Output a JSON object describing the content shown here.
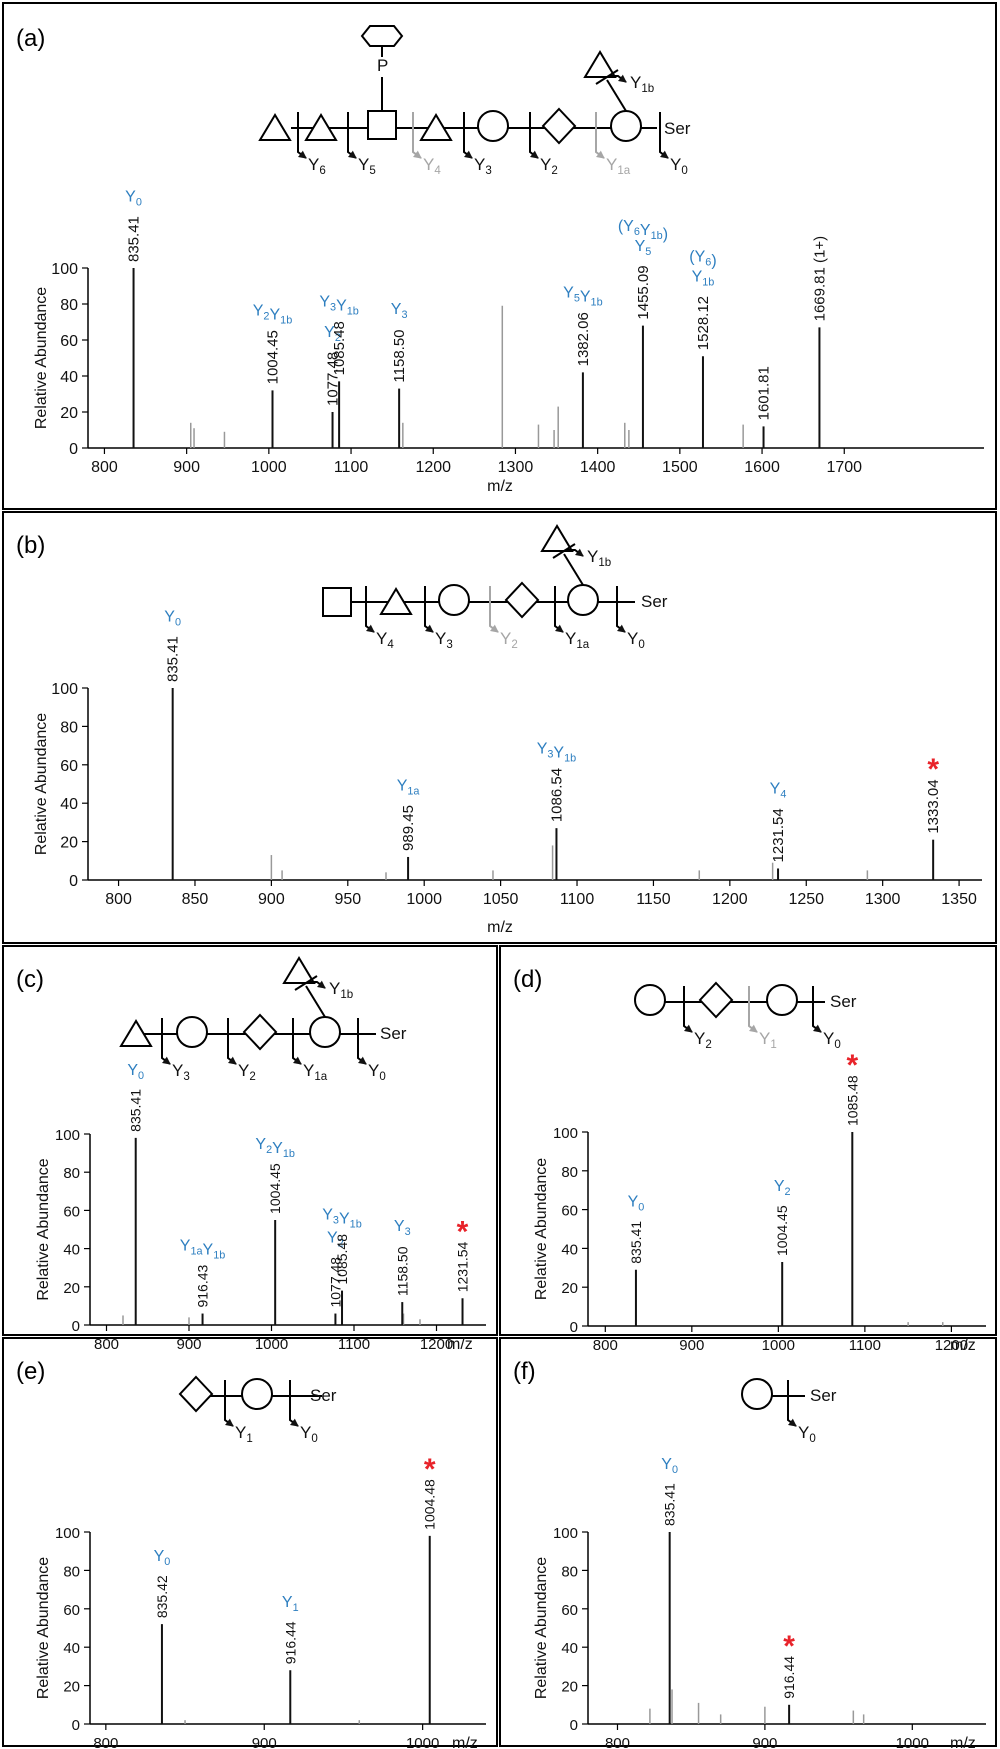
{
  "colors": {
    "annotation": "#2e7fc0",
    "star": "#e8232a",
    "peak": "#111111",
    "minor_peak": "#999999",
    "faded": "#a6a6a6"
  },
  "panel_labels": [
    "(a)",
    "(b)",
    "(c)",
    "(d)",
    "(e)",
    "(f)"
  ],
  "xlabel": "m/z",
  "ylabel": "Relative Abundance",
  "glycan": {
    "ser_label": "Ser",
    "phosphate_label": "P",
    "cleavages": {
      "a": [
        "Y6",
        "Y5",
        "Y4",
        "Y3",
        "Y2",
        "Y1a",
        "Y0",
        "Y1b"
      ],
      "b": [
        "Y4",
        "Y3",
        "Y2",
        "Y1a",
        "Y0",
        "Y1b"
      ],
      "c": [
        "Y3",
        "Y2",
        "Y1a",
        "Y0",
        "Y1b"
      ],
      "d": [
        "Y2",
        "Y1",
        "Y0"
      ],
      "e": [
        "Y1",
        "Y0"
      ],
      "f": [
        "Y0"
      ]
    }
  },
  "chart_data": [
    {
      "panel": "(a)",
      "type": "bar",
      "xlim": [
        780,
        1870
      ],
      "ylim": [
        0,
        100
      ],
      "xticks": [
        800,
        900,
        1000,
        1100,
        1200,
        1300,
        1400,
        1500,
        1600,
        1700
      ],
      "yticks": [
        0,
        20,
        40,
        60,
        80,
        100
      ],
      "labeled_peaks": [
        {
          "mz": 835.41,
          "y": 100,
          "label": "835.41",
          "ion": "Y0"
        },
        {
          "mz": 1004.45,
          "y": 32,
          "label": "1004.45",
          "ion": "Y2Y1b"
        },
        {
          "mz": 1077.48,
          "y": 20,
          "label": "1077.48",
          "ion": "Y2"
        },
        {
          "mz": 1085.48,
          "y": 37,
          "label": "1085.48",
          "ion": "Y3Y1b"
        },
        {
          "mz": 1158.5,
          "y": 33,
          "label": "1158.50",
          "ion": "Y3"
        },
        {
          "mz": 1382.06,
          "y": 42,
          "label": "1382.06",
          "ion": "Y5Y1b"
        },
        {
          "mz": 1455.09,
          "y": 68,
          "label": "1455.09",
          "ion": "(Y6Y1b) Y5"
        },
        {
          "mz": 1528.12,
          "y": 51,
          "label": "1528.12",
          "ion": "(Y6) Y1b"
        },
        {
          "mz": 1601.81,
          "y": 12,
          "label": "1601.81",
          "ion": ""
        },
        {
          "mz": 1669.81,
          "y": 67,
          "label": "1669.81 (1+)",
          "ion": ""
        }
      ],
      "minor_peaks": [
        {
          "mz": 905,
          "y": 14
        },
        {
          "mz": 909,
          "y": 11
        },
        {
          "mz": 946,
          "y": 9
        },
        {
          "mz": 1163,
          "y": 14
        },
        {
          "mz": 1284,
          "y": 79
        },
        {
          "mz": 1328,
          "y": 13
        },
        {
          "mz": 1347,
          "y": 10
        },
        {
          "mz": 1352,
          "y": 23
        },
        {
          "mz": 1433,
          "y": 14
        },
        {
          "mz": 1438,
          "y": 10
        },
        {
          "mz": 1577,
          "y": 13
        }
      ]
    },
    {
      "panel": "(b)",
      "type": "bar",
      "xlim": [
        780,
        1365
      ],
      "ylim": [
        0,
        100
      ],
      "xticks": [
        800,
        850,
        900,
        950,
        1000,
        1050,
        1100,
        1150,
        1200,
        1250,
        1300,
        1350
      ],
      "yticks": [
        0,
        20,
        40,
        60,
        80,
        100
      ],
      "labeled_peaks": [
        {
          "mz": 835.41,
          "y": 100,
          "label": "835.41",
          "ion": "Y0"
        },
        {
          "mz": 989.45,
          "y": 12,
          "label": "989.45",
          "ion": "Y1a"
        },
        {
          "mz": 1086.54,
          "y": 27,
          "label": "1086.54",
          "ion": "Y3Y1b"
        },
        {
          "mz": 1231.54,
          "y": 6,
          "label": "1231.54",
          "ion": "Y4"
        },
        {
          "mz": 1333.04,
          "y": 21,
          "label": "1333.04",
          "ion": "",
          "precursor": true
        }
      ],
      "minor_peaks": [
        {
          "mz": 900,
          "y": 13
        },
        {
          "mz": 907,
          "y": 5
        },
        {
          "mz": 975,
          "y": 4
        },
        {
          "mz": 1045,
          "y": 5
        },
        {
          "mz": 1084,
          "y": 18
        },
        {
          "mz": 1180,
          "y": 5
        },
        {
          "mz": 1228,
          "y": 9
        },
        {
          "mz": 1290,
          "y": 5
        }
      ]
    },
    {
      "panel": "(c)",
      "type": "bar",
      "xlim": [
        780,
        1260
      ],
      "ylim": [
        0,
        100
      ],
      "xticks": [
        800,
        900,
        1000,
        1100,
        1200
      ],
      "yticks": [
        0,
        20,
        40,
        60,
        80,
        100
      ],
      "labeled_peaks": [
        {
          "mz": 835.41,
          "y": 98,
          "label": "835.41",
          "ion": "Y0"
        },
        {
          "mz": 916.43,
          "y": 6,
          "label": "916.43",
          "ion": "Y1aY1b"
        },
        {
          "mz": 1004.45,
          "y": 55,
          "label": "1004.45",
          "ion": "Y2Y1b"
        },
        {
          "mz": 1077.48,
          "y": 6,
          "label": "1077.48",
          "ion": "Y2"
        },
        {
          "mz": 1085.48,
          "y": 18,
          "label": "1085.48",
          "ion": "Y3Y1b"
        },
        {
          "mz": 1158.5,
          "y": 12,
          "label": "1158.50",
          "ion": "Y3"
        },
        {
          "mz": 1231.54,
          "y": 14,
          "label": "1231.54",
          "ion": "",
          "precursor": true
        }
      ],
      "minor_peaks": [
        {
          "mz": 820,
          "y": 5
        },
        {
          "mz": 900,
          "y": 4
        },
        {
          "mz": 1160,
          "y": 6
        },
        {
          "mz": 1180,
          "y": 3
        }
      ]
    },
    {
      "panel": "(d)",
      "type": "bar",
      "xlim": [
        780,
        1240
      ],
      "ylim": [
        0,
        100
      ],
      "xticks": [
        800,
        900,
        1000,
        1100,
        1200
      ],
      "yticks": [
        0,
        20,
        40,
        60,
        80,
        100
      ],
      "labeled_peaks": [
        {
          "mz": 835.41,
          "y": 29,
          "label": "835.41",
          "ion": "Y0"
        },
        {
          "mz": 1004.45,
          "y": 33,
          "label": "1004.45",
          "ion": "Y2"
        },
        {
          "mz": 1085.48,
          "y": 100,
          "label": "1085.48",
          "ion": "",
          "precursor": true
        }
      ],
      "minor_peaks": [
        {
          "mz": 1150,
          "y": 2
        },
        {
          "mz": 1190,
          "y": 2
        }
      ]
    },
    {
      "panel": "(e)",
      "type": "bar",
      "xlim": [
        790,
        1040
      ],
      "ylim": [
        0,
        100
      ],
      "xticks": [
        800,
        900,
        1000
      ],
      "yticks": [
        0,
        20,
        40,
        60,
        80,
        100
      ],
      "labeled_peaks": [
        {
          "mz": 835.42,
          "y": 52,
          "label": "835.42",
          "ion": "Y0"
        },
        {
          "mz": 916.44,
          "y": 28,
          "label": "916.44",
          "ion": "Y1"
        },
        {
          "mz": 1004.48,
          "y": 98,
          "label": "1004.48",
          "ion": "",
          "precursor": true
        }
      ],
      "minor_peaks": [
        {
          "mz": 850,
          "y": 2
        },
        {
          "mz": 960,
          "y": 2
        }
      ]
    },
    {
      "panel": "(f)",
      "type": "bar",
      "xlim": [
        780,
        1050
      ],
      "ylim": [
        0,
        100
      ],
      "xticks": [
        800,
        900,
        1000
      ],
      "yticks": [
        0,
        20,
        40,
        60,
        80,
        100
      ],
      "labeled_peaks": [
        {
          "mz": 835.41,
          "y": 100,
          "label": "835.41",
          "ion": "Y0"
        },
        {
          "mz": 916.44,
          "y": 10,
          "label": "916.44",
          "ion": "",
          "precursor": true
        }
      ],
      "minor_peaks": [
        {
          "mz": 822,
          "y": 8
        },
        {
          "mz": 837,
          "y": 18
        },
        {
          "mz": 855,
          "y": 11
        },
        {
          "mz": 870,
          "y": 5
        },
        {
          "mz": 900,
          "y": 9
        },
        {
          "mz": 960,
          "y": 7
        },
        {
          "mz": 967,
          "y": 5
        }
      ]
    }
  ]
}
